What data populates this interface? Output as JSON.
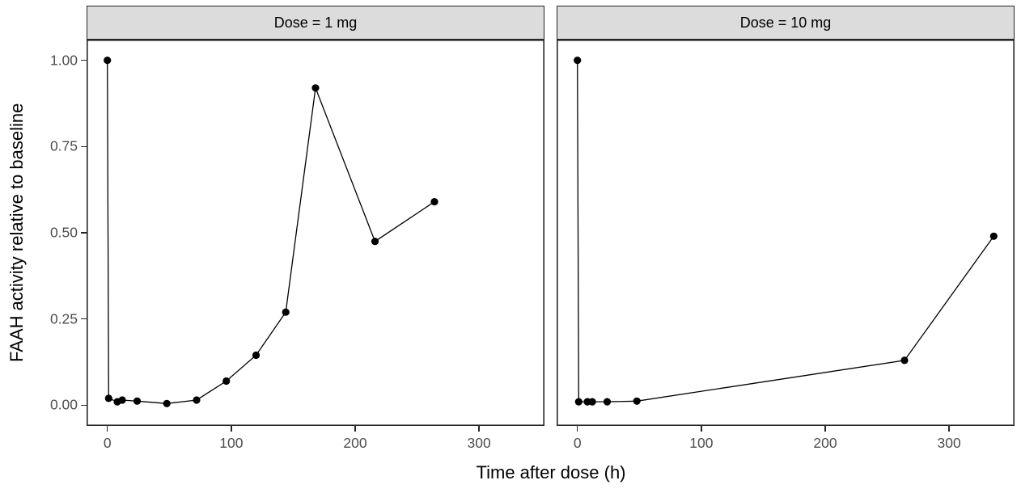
{
  "figure": {
    "xlabel": "Time after dose (h)",
    "ylabel": "FAAH activity relative to baseline"
  },
  "chart_data": {
    "type": "line",
    "description": "Faceted scatter-line plot (ggplot2 style), points + connecting line, no gridlines, no legend",
    "xlabel": "Time after dose (h)",
    "ylabel": "FAAH activity relative to baseline",
    "xlim": [
      -16.8,
      352.8
    ],
    "ylim": [
      -0.06,
      1.06
    ],
    "grid": "off",
    "legend": "none",
    "x_ticks": {
      "values": [
        0,
        100,
        200,
        300
      ],
      "labels": [
        "0",
        "100",
        "200",
        "300"
      ]
    },
    "y_ticks": {
      "values": [
        0.0,
        0.25,
        0.5,
        0.75,
        1.0
      ],
      "labels": [
        "0.00",
        "0.25",
        "0.50",
        "0.75",
        "1.00"
      ]
    },
    "facets": [
      {
        "label": "Dose = 1 mg",
        "points": [
          [
            0,
            1.0
          ],
          [
            1,
            0.02
          ],
          [
            8,
            0.01
          ],
          [
            12,
            0.015
          ],
          [
            24,
            0.012
          ],
          [
            48,
            0.005
          ],
          [
            72,
            0.015
          ],
          [
            96,
            0.07
          ],
          [
            120,
            0.145
          ],
          [
            144,
            0.27
          ],
          [
            168,
            0.92
          ],
          [
            216,
            0.475
          ],
          [
            264,
            0.59
          ]
        ]
      },
      {
        "label": "Dose = 10 mg",
        "points": [
          [
            0,
            1.0
          ],
          [
            1,
            0.01
          ],
          [
            8,
            0.01
          ],
          [
            12,
            0.01
          ],
          [
            24,
            0.01
          ],
          [
            48,
            0.012
          ],
          [
            264,
            0.13
          ],
          [
            336,
            0.49
          ]
        ]
      }
    ]
  },
  "style": {
    "background": "#FFFFFF",
    "panel_fill": "#FFFFFF",
    "panel_border": "#262626",
    "strip_fill": "#DCDCDC",
    "strip_border": "#262626",
    "line_color": "#000000",
    "point_color": "#000000",
    "tick_mark_color": "#262626",
    "tick_label_color": "#4D4D4D",
    "title_color": "#000000"
  }
}
